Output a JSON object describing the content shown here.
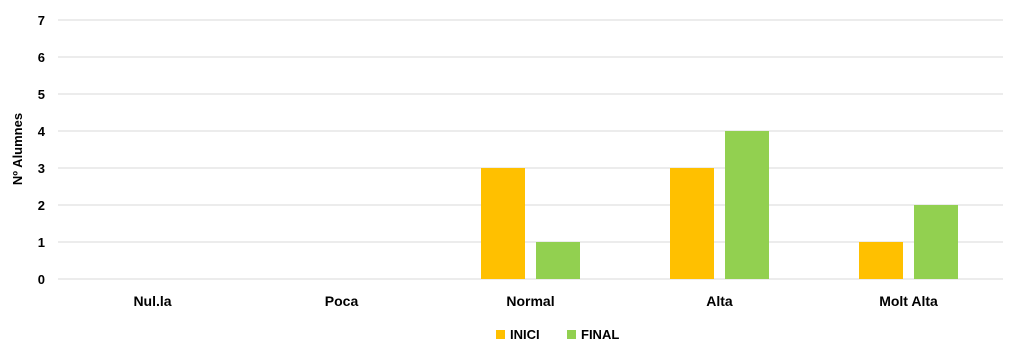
{
  "chart_data": {
    "type": "bar",
    "title": "",
    "xlabel": "",
    "ylabel": "Nº Alumnes",
    "categories": [
      "Nul.la",
      "Poca",
      "Normal",
      "Alta",
      "Molt Alta"
    ],
    "series": [
      {
        "name": "INICI",
        "values": [
          0,
          0,
          3,
          3,
          1
        ],
        "color": "#FFC000"
      },
      {
        "name": "FINAL",
        "values": [
          0,
          0,
          1,
          4,
          2
        ],
        "color": "#92D050"
      }
    ],
    "ylim": [
      0,
      7
    ],
    "yticks": [
      0,
      1,
      2,
      3,
      4,
      5,
      6,
      7
    ],
    "grid": true,
    "legend_position": "bottom",
    "gridline_color": "#D9D9D9"
  }
}
